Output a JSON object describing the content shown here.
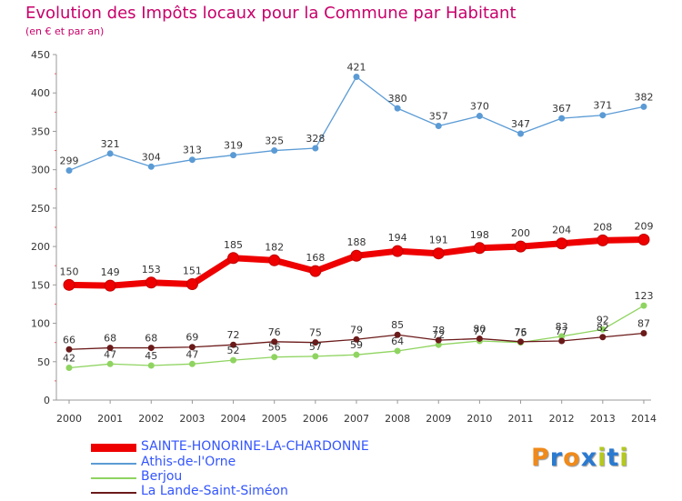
{
  "header": {
    "title": "Evolution des Impôts locaux pour la Commune par Habitant",
    "subtitle": "(en € et par an)"
  },
  "logo": {
    "text": "Proxiti",
    "colors": [
      "#f08a1a",
      "#2a7ad0",
      "#f08a1a",
      "#2a7ad0",
      "#b4c81e",
      "#2a7ad0",
      "#b4c81e"
    ]
  },
  "chart_data": {
    "type": "line",
    "title": "Evolution des Impôts locaux pour la Commune par Habitant",
    "subtitle": "(en € et par an)",
    "xlabel": "",
    "ylabel": "",
    "ylim": [
      0,
      450
    ],
    "yticks": [
      0,
      50,
      100,
      150,
      200,
      250,
      300,
      350,
      400,
      450
    ],
    "grid": false,
    "legend_position": "bottom-left",
    "categories": [
      "2000",
      "2001",
      "2002",
      "2003",
      "2004",
      "2005",
      "2006",
      "2007",
      "2008",
      "2009",
      "2010",
      "2011",
      "2012",
      "2013",
      "2014"
    ],
    "series": [
      {
        "name": "SAINTE-HONORINE-LA-CHARDONNE",
        "color": "#ee0000",
        "emphasis": true,
        "values": [
          150,
          149,
          153,
          151,
          185,
          182,
          168,
          188,
          194,
          191,
          198,
          200,
          204,
          208,
          209
        ]
      },
      {
        "name": "Athis-de-l'Orne",
        "color": "#5b9bd5",
        "emphasis": false,
        "values": [
          299,
          321,
          304,
          313,
          319,
          325,
          328,
          421,
          380,
          357,
          370,
          347,
          367,
          371,
          382
        ]
      },
      {
        "name": "Berjou",
        "color": "#8fd460",
        "emphasis": false,
        "values": [
          42,
          47,
          45,
          47,
          52,
          56,
          57,
          59,
          64,
          72,
          77,
          75,
          83,
          92,
          123
        ]
      },
      {
        "name": "La Lande-Saint-Siméon",
        "color": "#6b1a1a",
        "emphasis": false,
        "values": [
          66,
          68,
          68,
          69,
          72,
          76,
          75,
          79,
          85,
          78,
          80,
          76,
          77,
          82,
          87
        ]
      }
    ]
  }
}
